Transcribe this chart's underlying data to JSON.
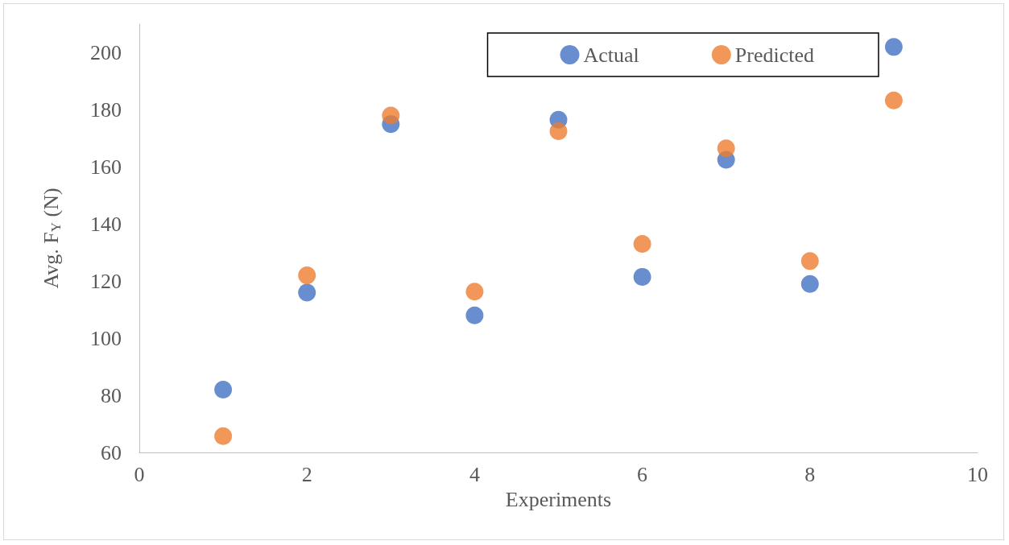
{
  "chart_data": {
    "type": "scatter",
    "xlabel": "Experiments",
    "ylabel": "Avg. F$_{Y}$ (N)",
    "x": [
      1,
      2,
      3,
      4,
      5,
      6,
      7,
      8,
      9
    ],
    "series": [
      {
        "name": "Actual",
        "color": "#4472c4",
        "values": [
          82,
          116,
          175,
          108,
          176.5,
          121.5,
          162.5,
          119,
          202
        ]
      },
      {
        "name": "Predicted",
        "color": "#ed7d31",
        "values": [
          65.7,
          122,
          178,
          116.3,
          172.5,
          133,
          166.5,
          127,
          183.3
        ]
      }
    ],
    "xlim": [
      0,
      10
    ],
    "xticks": [
      0,
      2,
      4,
      6,
      8,
      10
    ],
    "ylim": [
      60,
      210
    ],
    "yticks": [
      60,
      80,
      100,
      120,
      140,
      160,
      180,
      200
    ],
    "grid": false,
    "legend": "top right",
    "marker": "circle"
  }
}
